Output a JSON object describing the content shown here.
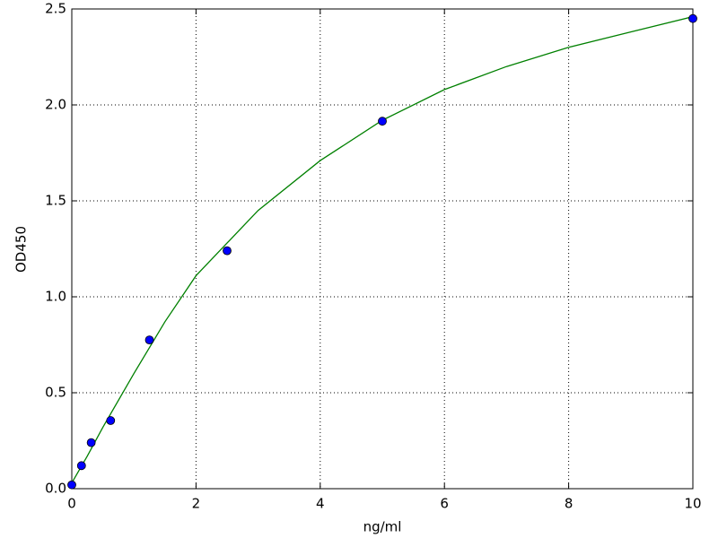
{
  "chart_data": {
    "type": "scatter",
    "xlabel": "ng/ml",
    "ylabel": "OD450",
    "xlim": [
      0,
      10
    ],
    "ylim": [
      0,
      2.5
    ],
    "xticks": [
      0,
      2,
      4,
      6,
      8,
      10
    ],
    "yticks": [
      {
        "value": 0,
        "label": "0.0"
      },
      0.5,
      {
        "value": 1,
        "label": "1.0"
      },
      1.5,
      {
        "value": 2,
        "label": "2.0"
      },
      2.5
    ],
    "grid": true,
    "series": [
      {
        "mode": "markers",
        "color": "#0000ff",
        "x": [
          0,
          0.156,
          0.3125,
          0.625,
          1.25,
          2.5,
          5,
          10
        ],
        "values": [
          0.02,
          0.12,
          0.24,
          0.355,
          0.775,
          1.24,
          1.915,
          2.45
        ]
      },
      {
        "mode": "line",
        "color": "#008000",
        "x": [
          0,
          0.25,
          0.5,
          1,
          1.5,
          2,
          3,
          4,
          5,
          6,
          7,
          8,
          9,
          10
        ],
        "values": [
          0.03,
          0.17,
          0.32,
          0.6,
          0.87,
          1.11,
          1.45,
          1.71,
          1.92,
          2.08,
          2.2,
          2.3,
          2.38,
          2.46
        ]
      }
    ]
  }
}
